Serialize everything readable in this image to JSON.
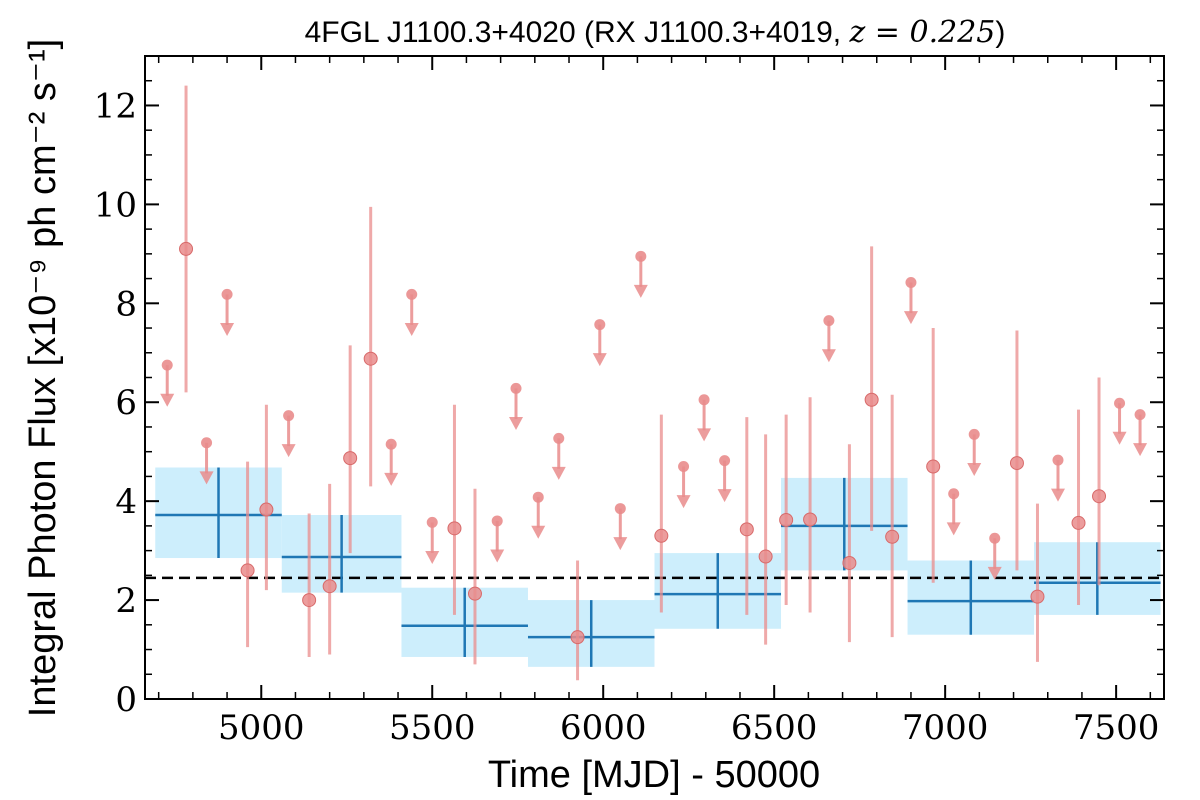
{
  "chart_data": {
    "type": "scatter",
    "title_main": "4FGL J1100.3+4020 (RX J1100.3+4019, ",
    "title_math": "z = 0.225",
    "title_end": ")",
    "xlabel": "Time [MJD] - 50000",
    "ylabel": "Integral Photon Flux [x10⁻⁹ ph cm⁻² s⁻¹]",
    "xlim": [
      4660,
      7640
    ],
    "ylim": [
      0,
      13
    ],
    "xticks": [
      5000,
      5500,
      6000,
      6500,
      7000,
      7500
    ],
    "yticks": [
      0,
      2,
      4,
      6,
      8,
      10,
      12
    ],
    "xtick_labels": [
      "5000",
      "5500",
      "6000",
      "6500",
      "7000",
      "7500"
    ],
    "ytick_labels": [
      "0",
      "2",
      "4",
      "6",
      "8",
      "10",
      "12"
    ],
    "average_flux": 2.45,
    "colors": {
      "short_bins": "#e98c8c",
      "long_bins": "#1f77b4",
      "long_bins_band": "#cdeefc",
      "average_line": "#000000"
    },
    "long_bins": [
      {
        "x0": 4690,
        "x1": 5060,
        "y": 3.72,
        "lo": 2.85,
        "hi": 4.68
      },
      {
        "x0": 5060,
        "x1": 5410,
        "y": 2.87,
        "lo": 2.15,
        "hi": 3.72
      },
      {
        "x0": 5410,
        "x1": 5780,
        "y": 1.48,
        "lo": 0.85,
        "hi": 2.25
      },
      {
        "x0": 5780,
        "x1": 6150,
        "y": 1.25,
        "lo": 0.65,
        "hi": 2.0
      },
      {
        "x0": 6150,
        "x1": 6520,
        "y": 2.12,
        "lo": 1.42,
        "hi": 2.95
      },
      {
        "x0": 6520,
        "x1": 6890,
        "y": 3.5,
        "lo": 2.6,
        "hi": 4.47
      },
      {
        "x0": 6890,
        "x1": 7260,
        "y": 1.98,
        "lo": 1.3,
        "hi": 2.8
      },
      {
        "x0": 7260,
        "x1": 7630,
        "y": 2.35,
        "lo": 1.7,
        "hi": 3.17
      }
    ],
    "detections": [
      {
        "x": 4780,
        "y": 9.1,
        "lo": 6.2,
        "hi": 12.4
      },
      {
        "x": 4960,
        "y": 2.6,
        "lo": 1.05,
        "hi": 4.8
      },
      {
        "x": 5015,
        "y": 3.83,
        "lo": 2.2,
        "hi": 5.95
      },
      {
        "x": 5140,
        "y": 2.0,
        "lo": 0.85,
        "hi": 3.75
      },
      {
        "x": 5200,
        "y": 2.28,
        "lo": 0.9,
        "hi": 4.35
      },
      {
        "x": 5260,
        "y": 4.87,
        "lo": 2.95,
        "hi": 7.15
      },
      {
        "x": 5320,
        "y": 6.88,
        "lo": 4.3,
        "hi": 9.95
      },
      {
        "x": 5565,
        "y": 3.45,
        "lo": 1.7,
        "hi": 5.95
      },
      {
        "x": 5625,
        "y": 2.13,
        "lo": 0.7,
        "hi": 4.25
      },
      {
        "x": 5925,
        "y": 1.25,
        "lo": 0.38,
        "hi": 2.8
      },
      {
        "x": 6170,
        "y": 3.3,
        "lo": 1.75,
        "hi": 5.75
      },
      {
        "x": 6420,
        "y": 3.43,
        "lo": 1.7,
        "hi": 5.7
      },
      {
        "x": 6475,
        "y": 2.88,
        "lo": 1.1,
        "hi": 5.35
      },
      {
        "x": 6535,
        "y": 3.62,
        "lo": 1.9,
        "hi": 5.75
      },
      {
        "x": 6605,
        "y": 3.63,
        "lo": 1.75,
        "hi": 6.1
      },
      {
        "x": 6720,
        "y": 2.75,
        "lo": 1.15,
        "hi": 5.15
      },
      {
        "x": 6785,
        "y": 6.05,
        "lo": 3.4,
        "hi": 9.15
      },
      {
        "x": 6845,
        "y": 3.28,
        "lo": 1.25,
        "hi": 6.15
      },
      {
        "x": 6965,
        "y": 4.7,
        "lo": 2.35,
        "hi": 7.5
      },
      {
        "x": 7210,
        "y": 4.77,
        "lo": 2.6,
        "hi": 7.45
      },
      {
        "x": 7270,
        "y": 2.07,
        "lo": 0.75,
        "hi": 3.95
      },
      {
        "x": 7390,
        "y": 3.56,
        "lo": 1.9,
        "hi": 5.85
      },
      {
        "x": 7450,
        "y": 4.1,
        "lo": 2.3,
        "hi": 6.5
      }
    ],
    "upper_limits": [
      {
        "x": 4725,
        "y": 6.75
      },
      {
        "x": 4840,
        "y": 5.18
      },
      {
        "x": 4900,
        "y": 8.18
      },
      {
        "x": 5080,
        "y": 5.73
      },
      {
        "x": 5380,
        "y": 5.15
      },
      {
        "x": 5440,
        "y": 8.18
      },
      {
        "x": 5500,
        "y": 3.57
      },
      {
        "x": 5690,
        "y": 3.6
      },
      {
        "x": 5745,
        "y": 6.28
      },
      {
        "x": 5810,
        "y": 4.08
      },
      {
        "x": 5870,
        "y": 5.27
      },
      {
        "x": 5990,
        "y": 7.57
      },
      {
        "x": 6050,
        "y": 3.85
      },
      {
        "x": 6110,
        "y": 8.95
      },
      {
        "x": 6235,
        "y": 4.7
      },
      {
        "x": 6295,
        "y": 6.05
      },
      {
        "x": 6355,
        "y": 4.82
      },
      {
        "x": 6660,
        "y": 7.65
      },
      {
        "x": 6900,
        "y": 8.42
      },
      {
        "x": 7025,
        "y": 4.15
      },
      {
        "x": 7085,
        "y": 5.35
      },
      {
        "x": 7145,
        "y": 3.25
      },
      {
        "x": 7330,
        "y": 4.83
      },
      {
        "x": 7510,
        "y": 5.98
      },
      {
        "x": 7570,
        "y": 5.75
      }
    ]
  }
}
